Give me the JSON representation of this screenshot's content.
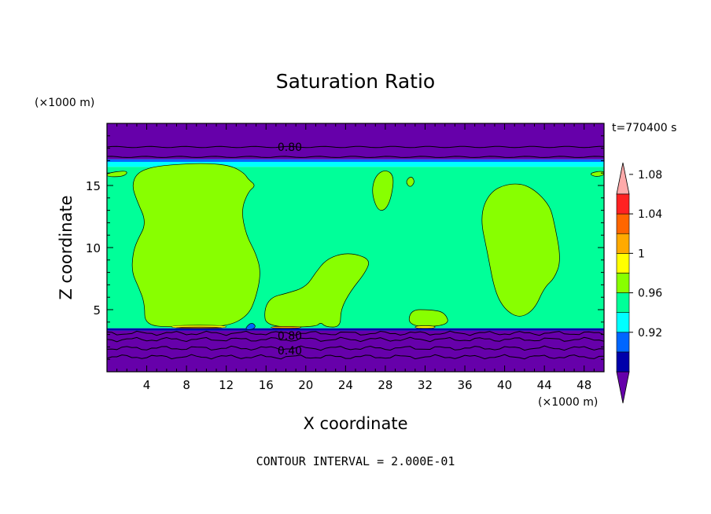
{
  "chart_data": {
    "type": "heatmap",
    "title": "Saturation Ratio",
    "xlabel": "X coordinate",
    "ylabel": "Z coordinate",
    "x_unit": "(×1000 m)",
    "y_unit": "(×1000 m)",
    "time_label": "t=770400 s",
    "footer": "CONTOUR INTERVAL = 2.000E-01",
    "xlim": [
      0,
      50
    ],
    "ylim": [
      0,
      20
    ],
    "x_ticks": [
      4,
      8,
      12,
      16,
      20,
      24,
      28,
      32,
      36,
      40,
      44,
      48
    ],
    "y_ticks": [
      5,
      10,
      15
    ],
    "colorbar": {
      "levels": [
        0.92,
        0.96,
        1,
        1.04,
        1.08
      ],
      "level_labels": [
        "0.92",
        "0.96",
        "1",
        "1.04",
        "1.08"
      ],
      "colors": [
        "#6600aa",
        "#0000aa",
        "#0066ff",
        "#00ffff",
        "#00ff99",
        "#88ff00",
        "#ffff00",
        "#ffaa00",
        "#ff6600",
        "#ff2222",
        "#ffaaaa"
      ]
    },
    "contour_labels": [
      {
        "text": "0.80",
        "x": 17.0,
        "z": 18.1
      },
      {
        "text": "0.80",
        "x": 17.0,
        "z": 2.9
      },
      {
        "text": "0.40",
        "x": 17.0,
        "z": 1.7
      }
    ],
    "bands": [
      {
        "z0": 17.1,
        "z1": 20.0,
        "color": "#6600aa"
      },
      {
        "z0": 16.9,
        "z1": 17.1,
        "color": "#0066ff"
      },
      {
        "z0": 16.5,
        "z1": 16.9,
        "color": "#00ffff"
      },
      {
        "z0": 3.5,
        "z1": 16.5,
        "color": "#00ff99"
      },
      {
        "z0": 3.3,
        "z1": 3.5,
        "color": "#0000aa"
      },
      {
        "z0": 0.0,
        "z1": 3.3,
        "color": "#6600aa"
      }
    ],
    "regions": [
      {
        "color": "#88ff00",
        "points": [
          [
            2.5,
            15.0
          ],
          [
            3.0,
            16.0
          ],
          [
            4.5,
            16.5
          ],
          [
            7.0,
            16.7
          ],
          [
            10.0,
            16.8
          ],
          [
            12.5,
            16.6
          ],
          [
            13.8,
            16.0
          ],
          [
            14.2,
            15.5
          ],
          [
            15.0,
            15.0
          ],
          [
            14.2,
            14.5
          ],
          [
            13.5,
            13.0
          ],
          [
            14.0,
            11.0
          ],
          [
            15.0,
            9.5
          ],
          [
            15.5,
            8.0
          ],
          [
            15.0,
            6.0
          ],
          [
            14.2,
            4.5
          ],
          [
            12.0,
            3.6
          ],
          [
            7.0,
            3.6
          ],
          [
            3.8,
            3.7
          ],
          [
            3.8,
            5.5
          ],
          [
            3.2,
            6.8
          ],
          [
            2.5,
            8.0
          ],
          [
            2.6,
            9.5
          ],
          [
            3.0,
            10.5
          ],
          [
            4.0,
            12.0
          ],
          [
            3.0,
            13.8
          ]
        ]
      },
      {
        "color": "#88ff00",
        "points": [
          [
            16.0,
            3.6
          ],
          [
            15.8,
            5.0
          ],
          [
            16.5,
            6.0
          ],
          [
            18.0,
            6.3
          ],
          [
            20.0,
            6.8
          ],
          [
            21.0,
            8.0
          ],
          [
            22.0,
            9.0
          ],
          [
            23.5,
            9.5
          ],
          [
            25.0,
            9.5
          ],
          [
            26.5,
            9.0
          ],
          [
            26.0,
            8.0
          ],
          [
            24.5,
            6.5
          ],
          [
            23.5,
            5.0
          ],
          [
            23.5,
            3.6
          ],
          [
            22.0,
            3.6
          ],
          [
            21.5,
            4.0
          ],
          [
            21.0,
            3.6
          ]
        ]
      },
      {
        "color": "#88ff00",
        "points": [
          [
            26.6,
            14.5
          ],
          [
            27.0,
            15.8
          ],
          [
            28.0,
            16.3
          ],
          [
            28.9,
            15.8
          ],
          [
            28.6,
            14.0
          ],
          [
            28.0,
            13.0
          ],
          [
            27.2,
            13.0
          ]
        ]
      },
      {
        "color": "#88ff00",
        "points": [
          [
            30.0,
            15.3
          ],
          [
            30.6,
            15.8
          ],
          [
            31.0,
            15.3
          ],
          [
            30.5,
            14.8
          ]
        ]
      },
      {
        "color": "#88ff00",
        "points": [
          [
            30.3,
            3.6
          ],
          [
            30.5,
            5.0
          ],
          [
            32.5,
            5.0
          ],
          [
            34.0,
            4.8
          ],
          [
            34.5,
            3.7
          ]
        ]
      },
      {
        "color": "#88ff00",
        "points": [
          [
            37.5,
            12.5
          ],
          [
            38.5,
            14.5
          ],
          [
            40.5,
            15.2
          ],
          [
            42.5,
            15.0
          ],
          [
            44.5,
            13.5
          ],
          [
            45.0,
            12.0
          ],
          [
            45.7,
            9.0
          ],
          [
            45.0,
            7.5
          ],
          [
            44.0,
            6.8
          ],
          [
            43.0,
            5.0
          ],
          [
            41.5,
            4.3
          ],
          [
            40.0,
            5.0
          ],
          [
            39.0,
            6.5
          ],
          [
            38.3,
            9.5
          ]
        ]
      },
      {
        "color": "#88ff00",
        "points": [
          [
            0.0,
            16.0
          ],
          [
            1.8,
            16.2
          ],
          [
            2.1,
            16.0
          ],
          [
            1.5,
            15.7
          ],
          [
            0.0,
            15.7
          ]
        ]
      },
      {
        "color": "#88ff00",
        "points": [
          [
            48.5,
            16.0
          ],
          [
            50.0,
            16.2
          ],
          [
            50.0,
            15.8
          ],
          [
            49.0,
            15.7
          ]
        ]
      },
      {
        "color": "#ffff00",
        "points": [
          [
            6.5,
            3.5
          ],
          [
            12.0,
            3.5
          ],
          [
            12.0,
            3.75
          ],
          [
            6.5,
            3.75
          ]
        ]
      },
      {
        "color": "#ffaa00",
        "points": [
          [
            7.0,
            3.5
          ],
          [
            11.5,
            3.5
          ],
          [
            11.5,
            3.6
          ],
          [
            7.0,
            3.6
          ]
        ]
      },
      {
        "color": "#ffaa00",
        "points": [
          [
            16.5,
            3.5
          ],
          [
            19.5,
            3.5
          ],
          [
            19.5,
            3.65
          ],
          [
            16.5,
            3.65
          ]
        ]
      },
      {
        "color": "#ffff00",
        "points": [
          [
            31.0,
            3.5
          ],
          [
            33.0,
            3.5
          ],
          [
            33.0,
            3.7
          ],
          [
            31.0,
            3.7
          ]
        ]
      },
      {
        "color": "#0066ff",
        "points": [
          [
            13.8,
            3.4
          ],
          [
            14.5,
            4.0
          ],
          [
            15.0,
            3.7
          ],
          [
            14.7,
            3.4
          ]
        ]
      }
    ],
    "contour_lines": [
      {
        "z": 18.1
      },
      {
        "z": 17.3
      },
      {
        "z": 3.1
      },
      {
        "z": 2.6
      },
      {
        "z": 1.9
      },
      {
        "z": 1.2
      }
    ]
  }
}
